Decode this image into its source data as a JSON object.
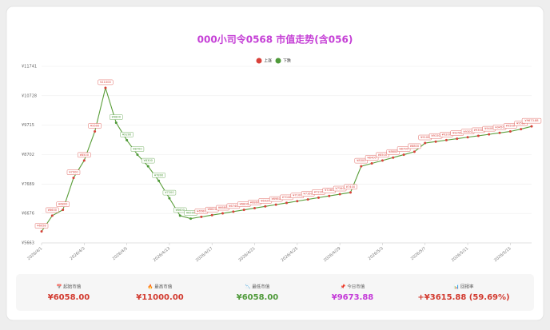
{
  "chart_data": {
    "type": "line",
    "title": "000小司令0568 市值走势(含056)",
    "legend": [
      {
        "name": "上涨",
        "color": "#d9413a"
      },
      {
        "name": "下跌",
        "color": "#4f9a3a"
      }
    ],
    "line_color": "#5a9e3a",
    "categories": [
      "2026/4/1",
      null,
      null,
      null,
      "2026/4/3",
      null,
      null,
      null,
      "2026/4/5",
      null,
      null,
      null,
      "2026/4/13",
      null,
      null,
      null,
      "2026/4/17",
      null,
      null,
      null,
      "2026/4/21",
      null,
      null,
      null,
      "2026/4/25",
      null,
      null,
      null,
      "2026/4/29",
      null,
      null,
      null,
      "2026/5/3",
      null,
      null,
      null,
      "2026/5/7",
      null,
      null,
      null,
      "2026/5/11",
      null,
      null,
      null,
      "2026/5/15",
      null,
      null
    ],
    "values": [
      6058,
      6600,
      6800,
      7900,
      8500,
      9500,
      11000,
      9800,
      9200,
      8700,
      8300,
      7800,
      7200,
      6600,
      6500,
      6560,
      6620,
      6680,
      6740,
      6800,
      6860,
      6920,
      6980,
      7040,
      7100,
      7160,
      7220,
      7280,
      7340,
      7400,
      8300,
      8400,
      8500,
      8600,
      8700,
      8800,
      9100,
      9150,
      9200,
      9250,
      9300,
      9350,
      9400,
      9450,
      9500,
      9580,
      9673.88
    ],
    "value_labels": [
      "¥6058",
      "¥6600",
      "¥6800",
      "¥7900",
      "¥8500",
      "¥9500",
      "¥11000",
      "¥9800",
      "¥9200",
      "¥8700",
      "¥8300",
      "¥7800",
      "¥7200",
      "¥6600",
      "¥6500",
      "¥6560",
      "¥6620",
      "¥6680",
      "¥6740",
      "¥6800",
      "¥6860",
      "¥6920",
      "¥6980",
      "¥7040",
      "¥7100",
      "¥7160",
      "¥7220",
      "¥7280",
      "¥7340",
      "¥7400",
      "¥8300",
      "¥8400",
      "¥8500",
      "¥8600",
      "¥8700",
      "¥8800",
      "¥9100",
      "¥9150",
      "¥9200",
      "¥9250",
      "¥9300",
      "¥9350",
      "¥9400",
      "¥9450",
      "¥9500",
      "¥9580",
      "¥9673.88"
    ],
    "ylim": [
      5663,
      11741
    ],
    "yticks": [
      {
        "value": 5663,
        "label": "¥5663"
      },
      {
        "value": 6676,
        "label": "¥6676"
      },
      {
        "value": 7689,
        "label": "¥7689"
      },
      {
        "value": 8702,
        "label": "¥8702"
      },
      {
        "value": 9715,
        "label": "¥9715"
      },
      {
        "value": 10728,
        "label": "¥10728"
      },
      {
        "value": 11741,
        "label": "¥11741"
      }
    ],
    "grid": true
  },
  "stats": [
    {
      "label": "📅 起始市值",
      "value": "¥6058.00",
      "color": "#d23a2f"
    },
    {
      "label": "🔥 最高市值",
      "value": "¥11000.00",
      "color": "#d23a2f"
    },
    {
      "label": "📉 最低市值",
      "value": "¥6058.00",
      "color": "#4f9a3a"
    },
    {
      "label": "📌 今日市值",
      "value": "¥9673.88",
      "color": "#c43ad8"
    },
    {
      "label": "📊 回报率",
      "value": "+¥3615.88 (59.69%)",
      "color": "#d23a2f"
    }
  ]
}
